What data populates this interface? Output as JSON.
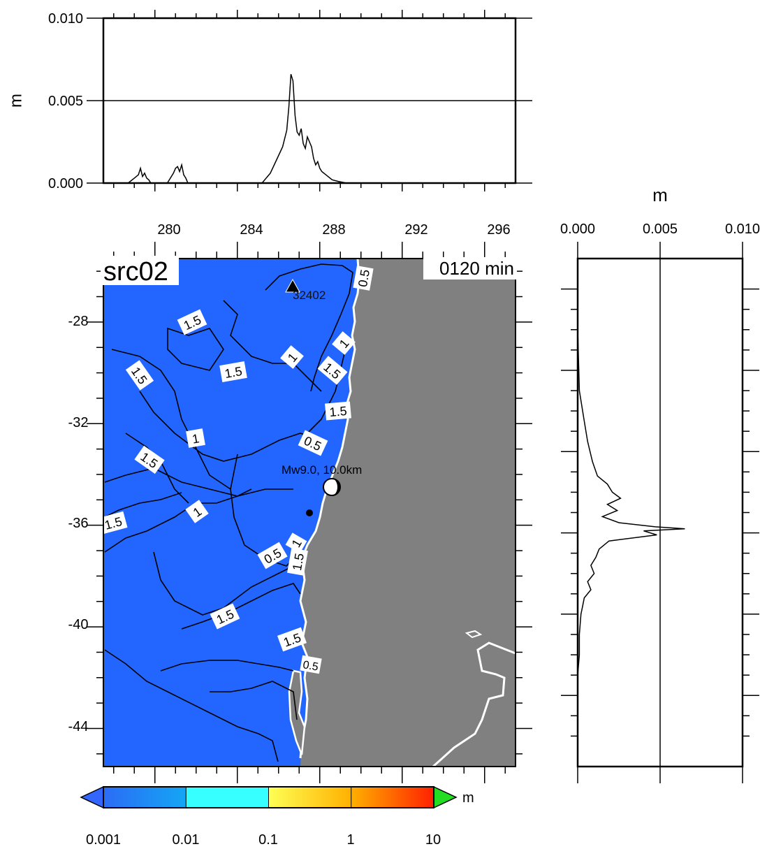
{
  "chart_data": [
    {
      "type": "line",
      "panel": "top-profile",
      "ylabel": "m",
      "xlim": [
        277.5,
        297.5
      ],
      "ylim": [
        0.0,
        0.01
      ],
      "xticks": [
        "280",
        "284",
        "288",
        "292",
        "296"
      ],
      "yticks": [
        "0.000",
        "0.005",
        "0.010"
      ],
      "grid": "horizontal line at 0.005",
      "series": [
        {
          "x": [
            278.7,
            279.0,
            279.2,
            279.3,
            279.4,
            279.5,
            279.6,
            279.7,
            279.8,
            280.6,
            280.9,
            281.0,
            281.1,
            281.2,
            281.3,
            281.4,
            281.5,
            281.6,
            285.2,
            285.6,
            285.9,
            286.2,
            286.4,
            286.5,
            286.6,
            286.7,
            286.8,
            286.9,
            287.0,
            287.1,
            287.2,
            287.3,
            287.4,
            287.5,
            287.6,
            287.7,
            287.8,
            287.9,
            288.0,
            288.1,
            288.3,
            288.6,
            288.9,
            289.3
          ],
          "y": [
            0.0,
            0.0003,
            0.0005,
            0.0009,
            0.0004,
            0.0006,
            0.0003,
            0.0002,
            0.0,
            0.0,
            0.0006,
            0.0009,
            0.001,
            0.0007,
            0.0011,
            0.0005,
            0.0003,
            0.0,
            0.0,
            0.0006,
            0.0014,
            0.0022,
            0.0032,
            0.0046,
            0.0066,
            0.0062,
            0.0041,
            0.0031,
            0.0029,
            0.0033,
            0.0024,
            0.0021,
            0.0028,
            0.0025,
            0.0022,
            0.0015,
            0.0011,
            0.0013,
            0.0009,
            0.0007,
            0.0005,
            0.0002,
            0.0001,
            0.0
          ]
        }
      ]
    },
    {
      "type": "line",
      "panel": "right-profile",
      "xlabel": "m",
      "xlim": [
        0.0,
        0.01
      ],
      "ylim": [
        -47.5,
        -22.5
      ],
      "xticks": [
        "0.000",
        "0.005",
        "0.010"
      ],
      "grid": "vertical line at 0.005",
      "series": [
        {
          "y": [
            -26,
            -29.0,
            -30.5,
            -31.5,
            -32.5,
            -33.2,
            -33.6,
            -34.0,
            -34.3,
            -34.6,
            -34.9,
            -35.2,
            -35.5,
            -35.7,
            -35.8,
            -35.9,
            -36.1,
            -36.4,
            -36.8,
            -37.2,
            -37.6,
            -38.0,
            -38.4,
            -38.8,
            -39.2,
            -39.6,
            -40.0,
            -41.0,
            -42.0,
            -43.0,
            -44.0,
            -45.0,
            -46.0
          ],
          "x": [
            0.0,
            0.0001,
            0.0004,
            0.0006,
            0.0009,
            0.0012,
            0.0018,
            0.0021,
            0.0026,
            0.0018,
            0.0024,
            0.0015,
            0.0025,
            0.0047,
            0.0065,
            0.004,
            0.0048,
            0.0019,
            0.0013,
            0.0011,
            0.0008,
            0.001,
            0.0006,
            0.0008,
            0.0004,
            0.0003,
            0.0002,
            0.0001,
            0.0001,
            0.0,
            0.0,
            0.0,
            0.0
          ]
        }
      ]
    },
    {
      "type": "heatmap",
      "panel": "map",
      "title": "src02",
      "time_label": "0120 min",
      "xlim": [
        277.5,
        297.5
      ],
      "ylim": [
        -45.5,
        -25.5
      ],
      "yticks": [
        "-28",
        "-32",
        "-36",
        "-40",
        "-44"
      ],
      "contour_labels": [
        "0.5",
        "1.5",
        "1",
        "1.5",
        "1.5",
        "1.5",
        "1",
        "1.5",
        "1",
        "1.5",
        "0.5",
        "1.5",
        "1",
        "1.5",
        "0.5",
        "1.5",
        "1",
        "1.5",
        "1.5",
        "0.5"
      ],
      "station_label": "32402",
      "event_label": "Mw9.0, 10.0km",
      "colorbar": {
        "ticks": [
          "0.001",
          "0.01",
          "0.1",
          "1",
          "10"
        ],
        "unit": "m",
        "colors": [
          "#2b6cf5",
          "#14a6f5",
          "#38ffff",
          "#ffff55",
          "#ffb000",
          "#ff2000"
        ],
        "under_color": "#3366ff",
        "over_color": "#22dd22"
      },
      "sea_color": "#2266ff",
      "land_color": "#808080",
      "coast_color": "#ffffff"
    }
  ]
}
